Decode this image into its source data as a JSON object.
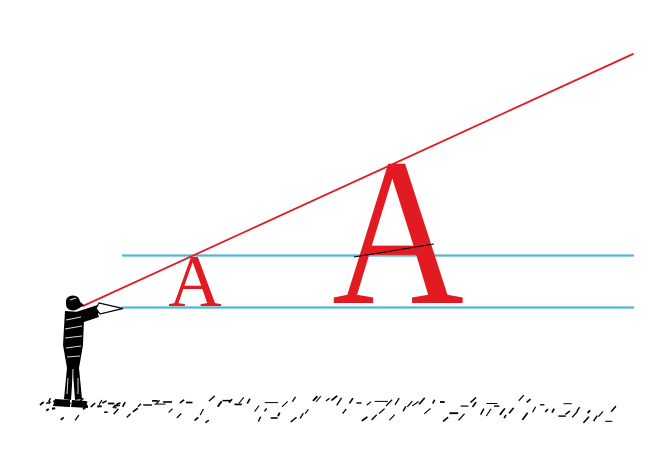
{
  "diagram": {
    "letters": {
      "near_letter": "A",
      "far_letter": "A"
    },
    "colors": {
      "red": "#E21B23",
      "blue": "#54B5DA",
      "ink": "#000000",
      "background": "#FFFFFF"
    }
  }
}
